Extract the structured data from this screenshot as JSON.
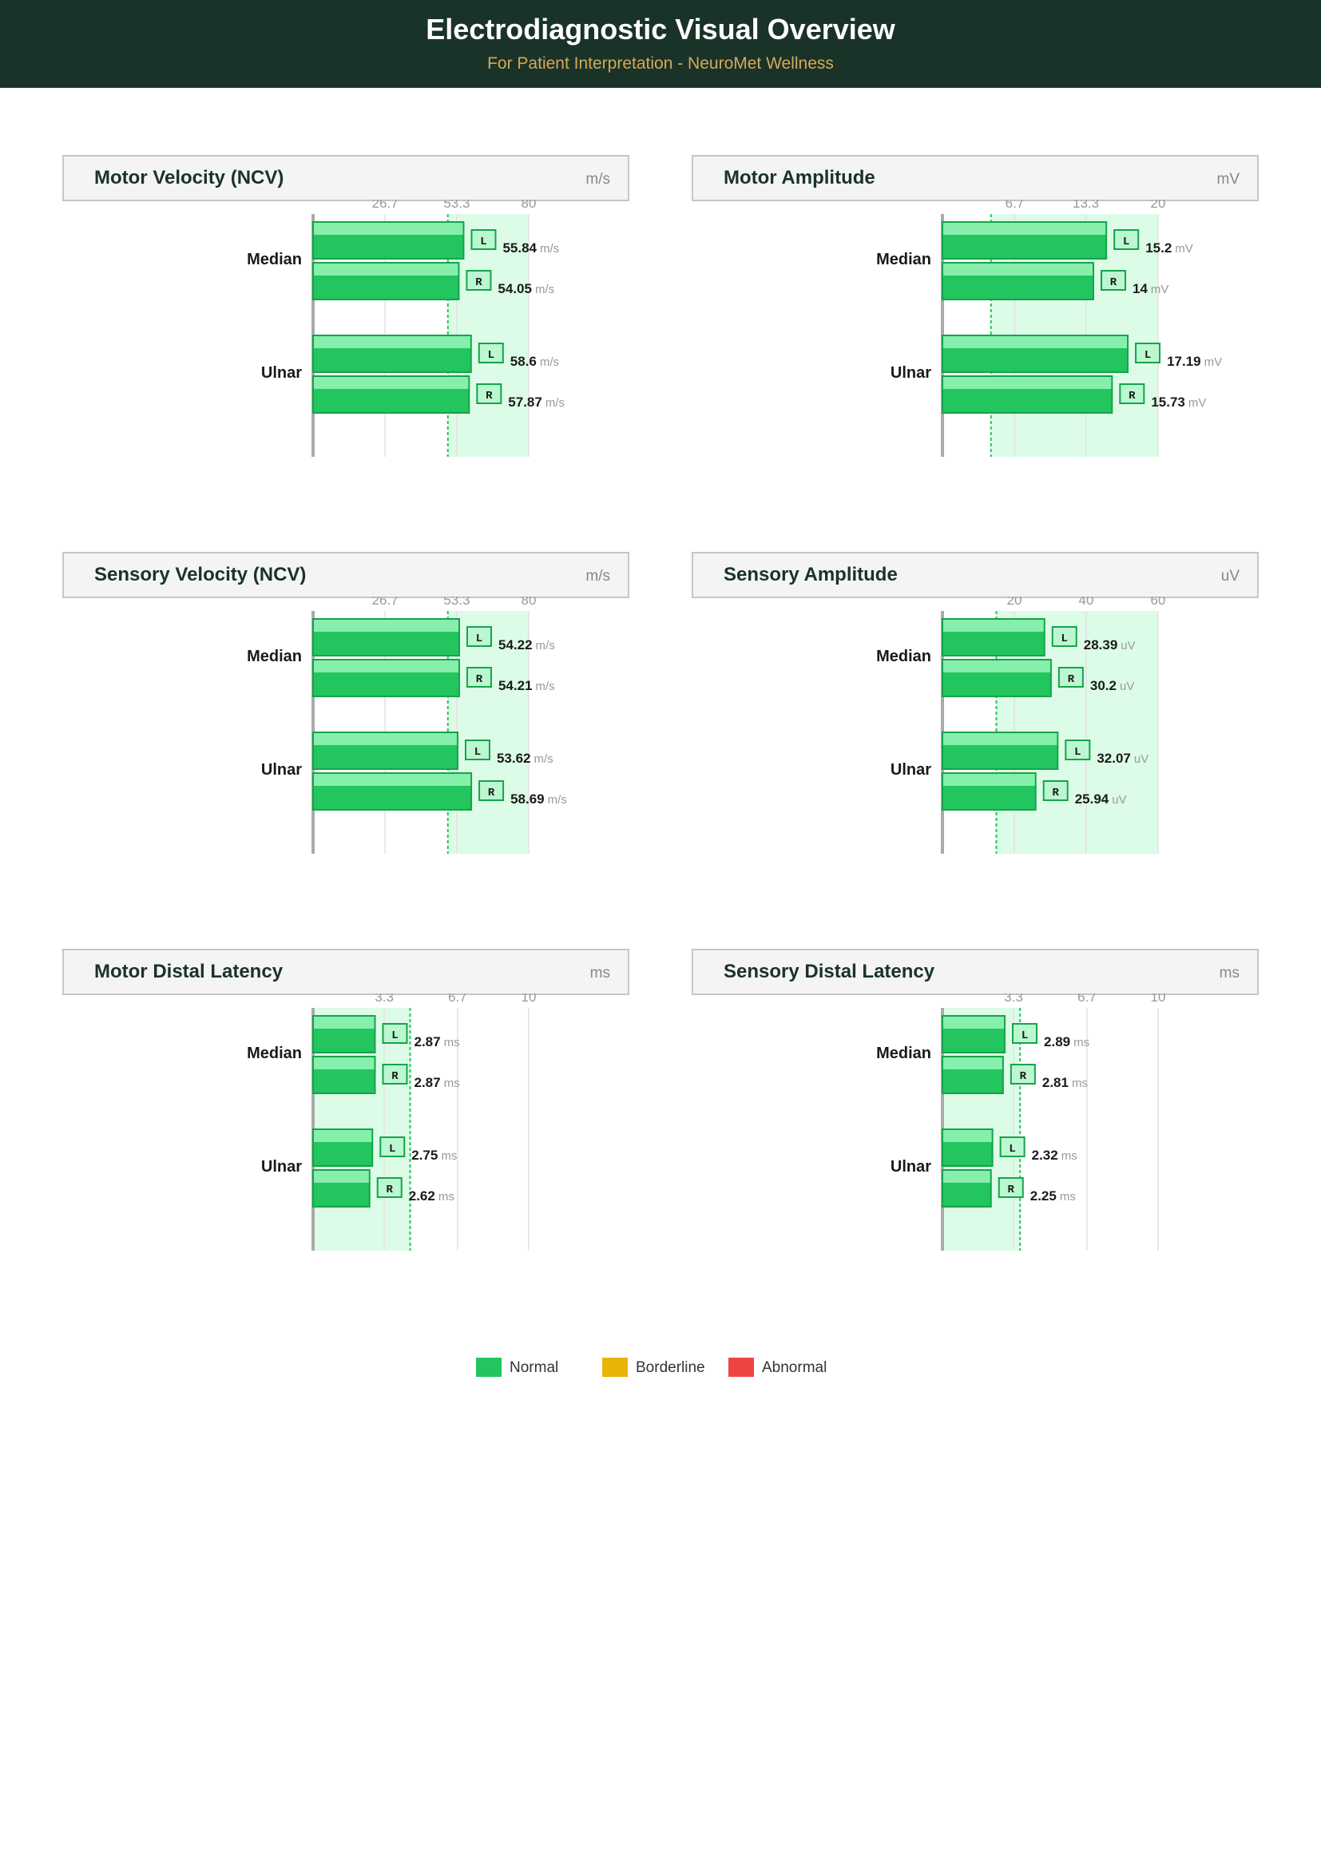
{
  "header": {
    "title": "Electrodiagnostic Visual Overview",
    "subtitle": "For Patient Interpretation  -  NeuroMet Wellness"
  },
  "colors": {
    "normal": "#22c55e",
    "borderline": "#eab308",
    "abnormal": "#ef4444",
    "normal_band": "#dcfce7"
  },
  "legend": [
    {
      "label": "Normal",
      "color": "#22c55e"
    },
    {
      "label": "Borderline",
      "color": "#eab308"
    },
    {
      "label": "Abnormal",
      "color": "#ef4444"
    }
  ],
  "chart_data": [
    {
      "type": "bar",
      "orientation": "horizontal",
      "title": "Motor Velocity (NCV)",
      "unit": "m/s",
      "xlim": [
        0,
        80
      ],
      "ticks": [
        26.7,
        53.3,
        80
      ],
      "tick_labels": [
        "26.7",
        "53.3",
        "80"
      ],
      "normal_range": [
        50,
        80
      ],
      "cutoff": 50,
      "categories": [
        "Median",
        "Ulnar"
      ],
      "series": [
        {
          "name": "L",
          "values": [
            55.84,
            58.6
          ],
          "labels": [
            "55.84",
            "58.6"
          ],
          "status": [
            "Normal",
            "Normal"
          ]
        },
        {
          "name": "R",
          "values": [
            54.05,
            57.87
          ],
          "labels": [
            "54.05",
            "57.87"
          ],
          "status": [
            "Normal",
            "Normal"
          ]
        }
      ]
    },
    {
      "type": "bar",
      "orientation": "horizontal",
      "title": "Motor Amplitude",
      "unit": "mV",
      "xlim": [
        0,
        20
      ],
      "ticks": [
        6.7,
        13.3,
        20
      ],
      "tick_labels": [
        "6.7",
        "13.3",
        "20"
      ],
      "normal_range": [
        4.5,
        20
      ],
      "cutoff": 4.5,
      "categories": [
        "Median",
        "Ulnar"
      ],
      "series": [
        {
          "name": "L",
          "values": [
            15.2,
            17.19
          ],
          "labels": [
            "15.2",
            "17.19"
          ],
          "status": [
            "Normal",
            "Normal"
          ]
        },
        {
          "name": "R",
          "values": [
            14,
            15.73
          ],
          "labels": [
            "14",
            "15.73"
          ],
          "status": [
            "Normal",
            "Normal"
          ]
        }
      ]
    },
    {
      "type": "bar",
      "orientation": "horizontal",
      "title": "Sensory Velocity (NCV)",
      "unit": "m/s",
      "xlim": [
        0,
        80
      ],
      "ticks": [
        26.7,
        53.3,
        80
      ],
      "tick_labels": [
        "26.7",
        "53.3",
        "80"
      ],
      "normal_range": [
        50,
        80
      ],
      "cutoff": 50,
      "categories": [
        "Median",
        "Ulnar"
      ],
      "series": [
        {
          "name": "L",
          "values": [
            54.22,
            53.62
          ],
          "labels": [
            "54.22",
            "53.62"
          ],
          "status": [
            "Normal",
            "Normal"
          ]
        },
        {
          "name": "R",
          "values": [
            54.21,
            58.69
          ],
          "labels": [
            "54.21",
            "58.69"
          ],
          "status": [
            "Normal",
            "Normal"
          ]
        }
      ]
    },
    {
      "type": "bar",
      "orientation": "horizontal",
      "title": "Sensory Amplitude",
      "unit": "uV",
      "xlim": [
        0,
        60
      ],
      "ticks": [
        20,
        40,
        60
      ],
      "tick_labels": [
        "20",
        "40",
        "60"
      ],
      "normal_range": [
        15,
        60
      ],
      "cutoff": 15,
      "categories": [
        "Median",
        "Ulnar"
      ],
      "series": [
        {
          "name": "L",
          "values": [
            28.39,
            32.07
          ],
          "labels": [
            "28.39",
            "32.07"
          ],
          "status": [
            "Normal",
            "Normal"
          ]
        },
        {
          "name": "R",
          "values": [
            30.2,
            25.94
          ],
          "labels": [
            "30.2",
            "25.94"
          ],
          "status": [
            "Normal",
            "Normal"
          ]
        }
      ]
    },
    {
      "type": "bar",
      "orientation": "horizontal",
      "title": "Motor Distal Latency",
      "unit": "ms",
      "xlim": [
        0,
        10
      ],
      "ticks": [
        3.3,
        6.7,
        10
      ],
      "tick_labels": [
        "3.3",
        "6.7",
        "10"
      ],
      "normal_range": [
        0,
        4.5
      ],
      "cutoff": 4.5,
      "categories": [
        "Median",
        "Ulnar"
      ],
      "series": [
        {
          "name": "L",
          "values": [
            2.87,
            2.75
          ],
          "labels": [
            "2.87",
            "2.75"
          ],
          "status": [
            "Normal",
            "Normal"
          ]
        },
        {
          "name": "R",
          "values": [
            2.87,
            2.62
          ],
          "labels": [
            "2.87",
            "2.62"
          ],
          "status": [
            "Normal",
            "Normal"
          ]
        }
      ]
    },
    {
      "type": "bar",
      "orientation": "horizontal",
      "title": "Sensory Distal Latency",
      "unit": "ms",
      "xlim": [
        0,
        10
      ],
      "ticks": [
        3.3,
        6.7,
        10
      ],
      "tick_labels": [
        "3.3",
        "6.7",
        "10"
      ],
      "normal_range": [
        0,
        3.6
      ],
      "cutoff": 3.6,
      "categories": [
        "Median",
        "Ulnar"
      ],
      "series": [
        {
          "name": "L",
          "values": [
            2.89,
            2.32
          ],
          "labels": [
            "2.89",
            "2.32"
          ],
          "status": [
            "Normal",
            "Normal"
          ]
        },
        {
          "name": "R",
          "values": [
            2.81,
            2.25
          ],
          "labels": [
            "2.81",
            "2.25"
          ],
          "status": [
            "Normal",
            "Normal"
          ]
        }
      ]
    }
  ]
}
